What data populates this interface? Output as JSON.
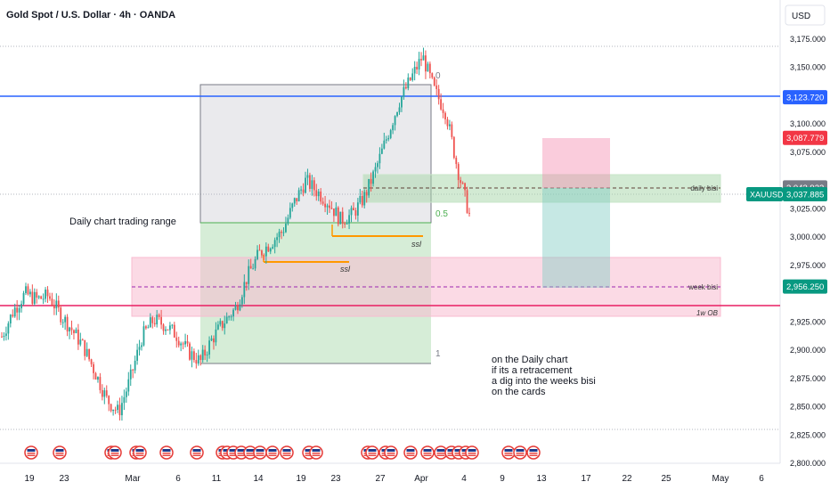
{
  "header": {
    "title": "Gold Spot / U.S. Dollar · 4h · OANDA",
    "currency": "USD"
  },
  "colors": {
    "up": "#26a69a",
    "down": "#ef5350",
    "blue_line": "#2962ff",
    "red_line": "#e91e63",
    "orange": "#ff9800",
    "green_zone": "#4caf50",
    "pink_zone": "#f48fb1"
  },
  "chart_data": {
    "type": "candlestick",
    "symbol": "XAUUSD",
    "y_ticks": [
      2800,
      2825,
      2850,
      2875,
      2900,
      2925,
      2950,
      2975,
      3000,
      3025,
      3050,
      3075,
      3100,
      3125,
      3150,
      3175
    ],
    "y_tick_labels": [
      "2,800.000",
      "2,825.000",
      "2,850.000",
      "2,875.000",
      "2,900.000",
      "2,925.000",
      "",
      "2,975.000",
      "3,000.000",
      "3,025.000",
      "",
      "3,075.000",
      "3,100.000",
      "",
      "3,150.000",
      "3,175.000"
    ],
    "x_labels": [
      "19",
      "23",
      "Mar",
      "6",
      "11",
      "14",
      "19",
      "23",
      "27",
      "Apr",
      "4",
      "9",
      "13",
      "17",
      "22",
      "25",
      "May",
      "6"
    ],
    "price_tags": [
      {
        "label": "3,123.720",
        "value": 3123.72,
        "color": "#2962ff"
      },
      {
        "label": "3,087.779",
        "value": 3087.779,
        "color": "#f23645"
      },
      {
        "label": "3,043.922",
        "value": 3043.922,
        "color": "#787b86"
      },
      {
        "label": "3,037.885",
        "value": 3037.885,
        "color": "#089981",
        "symbol": "XAUUSD"
      },
      {
        "label": "2,956.250",
        "value": 2956.25,
        "color": "#089981"
      }
    ],
    "series": {
      "waypoints_close": [
        [
          2912,
          2935,
          2950,
          2945,
          2948,
          2932,
          2918,
          2903,
          2880,
          2856,
          2845,
          2875,
          2912,
          2927,
          2922,
          2913,
          2898,
          2890,
          2910,
          2925,
          2937,
          2965,
          2985,
          2995,
          3005,
          3030,
          3050,
          3040,
          3030,
          3015,
          3020,
          3035,
          3060,
          3090,
          3120,
          3140,
          3160,
          3130,
          3110,
          3060,
          3020
        ],
        null
      ]
    },
    "annotations": {
      "zone_label_daily": "daily bisi",
      "zone_label_week": "week bisi",
      "line_label_1w": "1w OB",
      "ssl_1": "ssl",
      "ssl_2": "ssl",
      "fib_0": "0",
      "fib_05": "0.5",
      "fib_1": "1",
      "range_text": "Daily chart trading range",
      "note_lines": [
        "on the Daily chart",
        "if its a retracement",
        "a dig into the weeks bisi",
        "on the cards"
      ]
    }
  }
}
